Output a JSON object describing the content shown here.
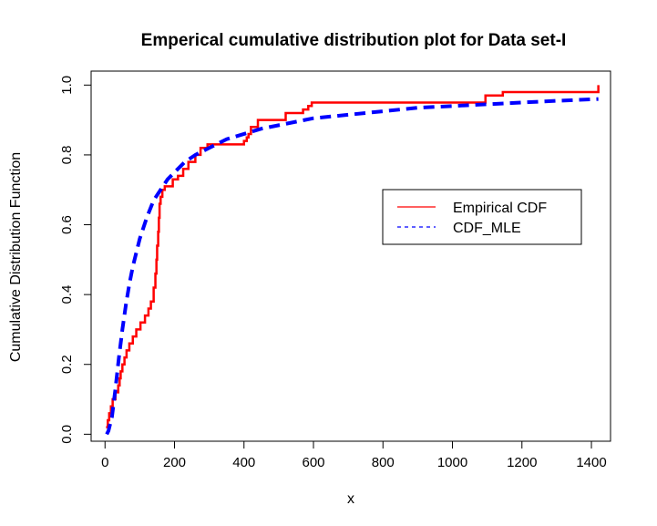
{
  "chart_data": {
    "type": "line",
    "title": "Emperical cumulative distribution plot for Data set-I",
    "xlabel": "x",
    "ylabel": "Cumulative Distribution Function",
    "xlim": [
      -40,
      1455
    ],
    "ylim": [
      -0.02,
      1.04
    ],
    "x_ticks": [
      "0",
      "200",
      "400",
      "600",
      "800",
      "1000",
      "1200",
      "1400"
    ],
    "x_tick_values": [
      0,
      200,
      400,
      600,
      800,
      1000,
      1200,
      1400
    ],
    "y_ticks": [
      "0.0",
      "0.2",
      "0.4",
      "0.6",
      "0.8",
      "1.0"
    ],
    "y_tick_values": [
      0,
      0.2,
      0.4,
      0.6,
      0.8,
      1.0
    ],
    "grid": false,
    "legend_position": "right",
    "series": [
      {
        "name": "Empirical CDF",
        "style": "solid-step",
        "color": "#ff0000",
        "x": [
          3,
          8,
          12,
          17,
          22,
          30,
          38,
          42,
          45,
          50,
          56,
          62,
          70,
          80,
          90,
          102,
          115,
          125,
          132,
          140,
          145,
          148,
          150,
          153,
          155,
          157,
          160,
          165,
          172,
          195,
          210,
          225,
          240,
          260,
          275,
          295,
          400,
          408,
          413,
          420,
          440,
          520,
          570,
          585,
          595,
          1095,
          1145,
          1420
        ],
        "y": [
          0.02,
          0.04,
          0.06,
          0.08,
          0.1,
          0.12,
          0.14,
          0.16,
          0.18,
          0.2,
          0.22,
          0.24,
          0.26,
          0.28,
          0.3,
          0.32,
          0.34,
          0.36,
          0.38,
          0.42,
          0.46,
          0.5,
          0.54,
          0.58,
          0.62,
          0.66,
          0.68,
          0.7,
          0.71,
          0.73,
          0.74,
          0.76,
          0.78,
          0.8,
          0.82,
          0.83,
          0.84,
          0.85,
          0.86,
          0.88,
          0.9,
          0.92,
          0.93,
          0.94,
          0.95,
          0.97,
          0.98,
          1.0
        ]
      },
      {
        "name": "CDF_MLE",
        "style": "dashed",
        "color": "#0000ff",
        "x": [
          5,
          10,
          20,
          30,
          40,
          50,
          60,
          70,
          80,
          90,
          100,
          120,
          140,
          160,
          180,
          200,
          230,
          260,
          300,
          350,
          400,
          450,
          500,
          600,
          700,
          800,
          900,
          1000,
          1100,
          1200,
          1300,
          1420
        ],
        "y": [
          0.0,
          0.01,
          0.05,
          0.13,
          0.22,
          0.3,
          0.37,
          0.43,
          0.48,
          0.52,
          0.56,
          0.62,
          0.67,
          0.7,
          0.73,
          0.75,
          0.78,
          0.8,
          0.82,
          0.845,
          0.86,
          0.875,
          0.885,
          0.905,
          0.915,
          0.925,
          0.935,
          0.94,
          0.945,
          0.95,
          0.955,
          0.96
        ]
      }
    ]
  },
  "colors": {
    "empirical": "#ff0000",
    "mle": "#0000ff",
    "axis": "#000000"
  }
}
